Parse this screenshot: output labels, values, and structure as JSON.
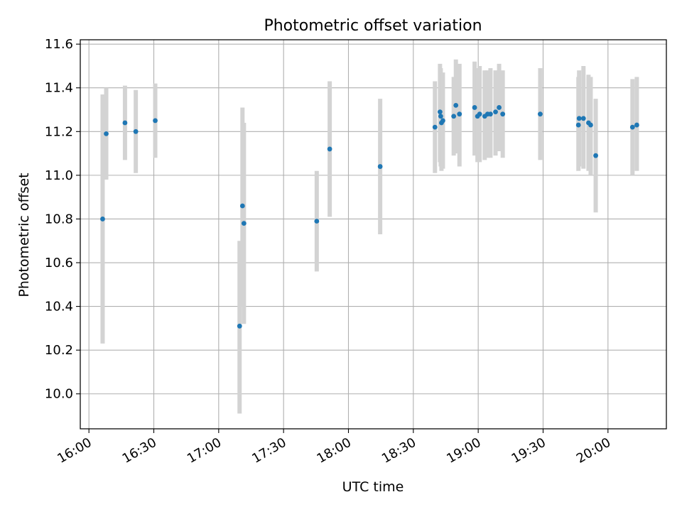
{
  "chart_data": {
    "type": "scatter",
    "title": "Photometric offset variation",
    "xlabel": "UTC time",
    "ylabel": "Photometric offset",
    "x_ticks": [
      "16:00",
      "16:30",
      "17:00",
      "17:30",
      "18:00",
      "18:30",
      "19:00",
      "19:30",
      "20:00"
    ],
    "y_ticks": [
      "10.0",
      "10.2",
      "10.4",
      "10.6",
      "10.8",
      "11.0",
      "11.2",
      "11.4",
      "11.6"
    ],
    "x_range": [
      "15:56",
      "20:27"
    ],
    "ylim": [
      9.84,
      11.62
    ],
    "grid": true,
    "marker_color": "#1f77b4",
    "errorbar_color": "#d3d3d3",
    "series": [
      {
        "points": [
          {
            "t": "16:06:20",
            "y": 10.8,
            "lo": 10.23,
            "hi": 11.37
          },
          {
            "t": "16:08:00",
            "y": 11.19,
            "lo": 10.98,
            "hi": 11.4
          },
          {
            "t": "16:16:40",
            "y": 11.24,
            "lo": 11.07,
            "hi": 11.41
          },
          {
            "t": "16:21:40",
            "y": 11.2,
            "lo": 11.01,
            "hi": 11.39
          },
          {
            "t": "16:30:40",
            "y": 11.25,
            "lo": 11.08,
            "hi": 11.42
          },
          {
            "t": "17:09:40",
            "y": 10.31,
            "lo": 9.91,
            "hi": 10.7
          },
          {
            "t": "17:11:00",
            "y": 10.86,
            "lo": 10.4,
            "hi": 11.31
          },
          {
            "t": "17:11:40",
            "y": 10.78,
            "lo": 10.32,
            "hi": 11.24
          },
          {
            "t": "17:45:20",
            "y": 10.79,
            "lo": 10.56,
            "hi": 11.02
          },
          {
            "t": "17:51:20",
            "y": 11.12,
            "lo": 10.81,
            "hi": 11.43
          },
          {
            "t": "18:14:40",
            "y": 11.04,
            "lo": 10.73,
            "hi": 11.35
          },
          {
            "t": "18:40:00",
            "y": 11.22,
            "lo": 11.01,
            "hi": 11.43
          },
          {
            "t": "18:42:20",
            "y": 11.29,
            "lo": 11.06,
            "hi": 11.51
          },
          {
            "t": "18:42:40",
            "y": 11.27,
            "lo": 11.04,
            "hi": 11.49
          },
          {
            "t": "18:43:00",
            "y": 11.24,
            "lo": 11.02,
            "hi": 11.46
          },
          {
            "t": "18:43:40",
            "y": 11.25,
            "lo": 11.03,
            "hi": 11.47
          },
          {
            "t": "18:48:40",
            "y": 11.27,
            "lo": 11.09,
            "hi": 11.45
          },
          {
            "t": "18:49:40",
            "y": 11.32,
            "lo": 11.1,
            "hi": 11.53
          },
          {
            "t": "18:51:20",
            "y": 11.28,
            "lo": 11.04,
            "hi": 11.51
          },
          {
            "t": "18:58:20",
            "y": 11.31,
            "lo": 11.09,
            "hi": 11.52
          },
          {
            "t": "18:59:40",
            "y": 11.27,
            "lo": 11.06,
            "hi": 11.49
          },
          {
            "t": "19:00:40",
            "y": 11.28,
            "lo": 11.06,
            "hi": 11.5
          },
          {
            "t": "19:03:00",
            "y": 11.27,
            "lo": 11.07,
            "hi": 11.48
          },
          {
            "t": "19:04:20",
            "y": 11.28,
            "lo": 11.08,
            "hi": 11.48
          },
          {
            "t": "19:05:40",
            "y": 11.28,
            "lo": 11.08,
            "hi": 11.49
          },
          {
            "t": "19:08:00",
            "y": 11.29,
            "lo": 11.09,
            "hi": 11.48
          },
          {
            "t": "19:09:40",
            "y": 11.31,
            "lo": 11.11,
            "hi": 11.51
          },
          {
            "t": "19:11:20",
            "y": 11.28,
            "lo": 11.08,
            "hi": 11.48
          },
          {
            "t": "19:28:40",
            "y": 11.28,
            "lo": 11.07,
            "hi": 11.49
          },
          {
            "t": "19:46:20",
            "y": 11.23,
            "lo": 11.02,
            "hi": 11.45
          },
          {
            "t": "19:46:40",
            "y": 11.26,
            "lo": 11.04,
            "hi": 11.48
          },
          {
            "t": "19:48:40",
            "y": 11.26,
            "lo": 11.03,
            "hi": 11.5
          },
          {
            "t": "19:51:00",
            "y": 11.24,
            "lo": 11.02,
            "hi": 11.46
          },
          {
            "t": "19:52:00",
            "y": 11.23,
            "lo": 11.0,
            "hi": 11.45
          },
          {
            "t": "19:54:20",
            "y": 11.09,
            "lo": 10.83,
            "hi": 11.35
          },
          {
            "t": "20:11:20",
            "y": 11.22,
            "lo": 11.0,
            "hi": 11.44
          },
          {
            "t": "20:13:20",
            "y": 11.23,
            "lo": 11.02,
            "hi": 11.45
          }
        ]
      }
    ]
  }
}
